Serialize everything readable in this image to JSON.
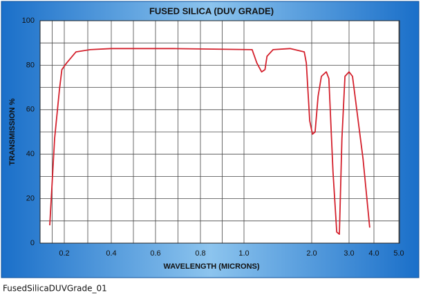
{
  "chart_data": {
    "type": "line",
    "title": "FUSED SILICA (DUV GRADE)",
    "xlabel": "WAVELENGTH (MICRONS)",
    "ylabel": "TRANSMISSION %",
    "caption": "FusedSilicaDUVGrade_01",
    "x": [
      0.14,
      0.16,
      0.18,
      0.19,
      0.21,
      0.25,
      0.31,
      0.4,
      0.68,
      1.12,
      1.19,
      1.26,
      1.31,
      1.34,
      1.43,
      1.68,
      1.89,
      1.92,
      1.97,
      2.02,
      2.09,
      2.17,
      2.26,
      2.39,
      2.46,
      2.57,
      2.67,
      2.74,
      2.81,
      2.89,
      3.0,
      3.14,
      3.56,
      3.83
    ],
    "series": [
      {
        "name": "Transmission",
        "color": "#d4202c",
        "values": [
          8,
          47,
          69,
          78,
          81,
          86,
          87,
          87.5,
          87.5,
          87,
          81,
          77,
          78,
          84,
          87,
          87.5,
          86,
          81,
          55,
          49,
          50,
          66,
          75,
          77,
          74,
          32,
          5,
          4,
          47,
          75,
          77,
          75,
          38,
          7
        ]
      }
    ],
    "xlim": [
      0.1,
      5.0
    ],
    "xticks": [
      0.2,
      0.4,
      0.6,
      0.8,
      {
        "value": 1,
        "label": "1.0"
      },
      {
        "value": 2,
        "label": "2.0"
      },
      {
        "value": 3,
        "label": "3.0"
      },
      {
        "value": 4,
        "label": "4.0"
      },
      {
        "value": 5,
        "label": "5.0"
      }
    ],
    "ylim": [
      0,
      100
    ],
    "yticks": [
      0,
      20,
      40,
      60,
      80,
      100
    ],
    "grid": true
  }
}
